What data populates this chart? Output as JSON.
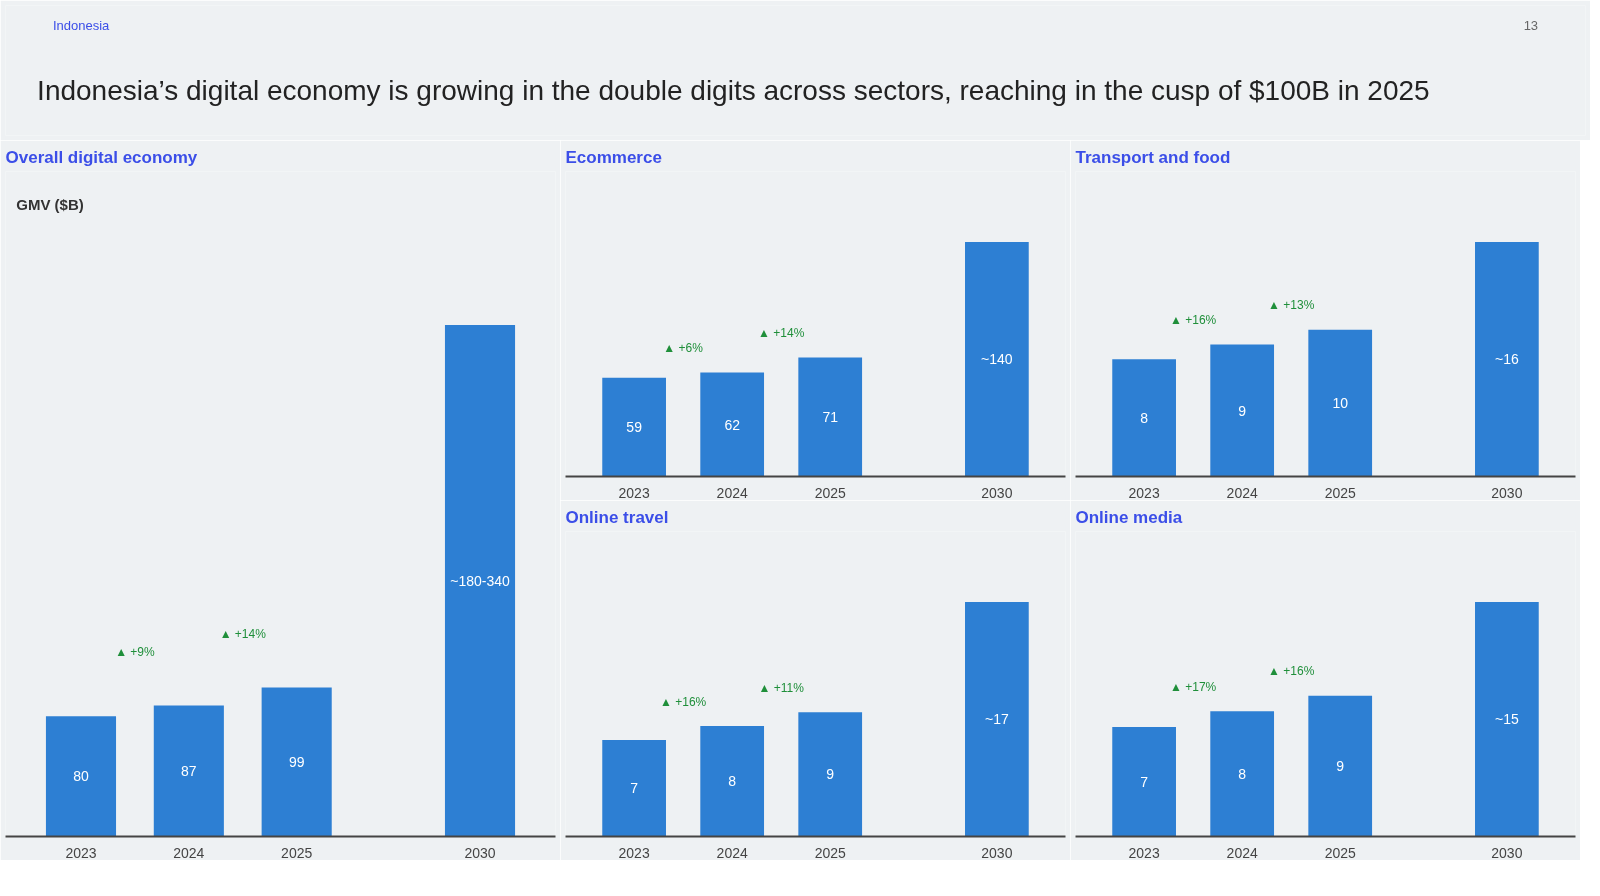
{
  "chart_data": [
    {
      "type": "other",
      "title": "Indonesia’s digital economy is growing in the double digits across sectors, reaching in the cusp of $100B in 2025",
      "annotations": [
        "Indonesia",
        "13"
      ]
    },
    {
      "type": "bar",
      "title": "Overall digital economy",
      "subtitle": "GMV ($B)",
      "categories": [
        "2023",
        "2024",
        "2025",
        "2030"
      ],
      "series": [
        {
          "color": "#2d7fd3",
          "values": [
            80,
            87,
            99,
            340
          ],
          "value_labels": [
            "80",
            "87",
            "99",
            "~180-340"
          ]
        }
      ],
      "annotations": [
        "▲ +9%",
        "▲ +14%"
      ]
    },
    {
      "type": "bar",
      "title": "Ecommerce",
      "categories": [
        "2023",
        "2024",
        "2025",
        "2030"
      ],
      "series": [
        {
          "color": "#2d7fd3",
          "values": [
            59,
            62,
            71,
            140
          ],
          "value_labels": [
            "59",
            "62",
            "71",
            "~140"
          ]
        }
      ],
      "annotations": [
        "▲ +6%",
        "▲ +14%"
      ]
    },
    {
      "type": "bar",
      "title": "Transport and food",
      "categories": [
        "2023",
        "2024",
        "2025",
        "2030"
      ],
      "series": [
        {
          "color": "#2d7fd3",
          "values": [
            8,
            9,
            10,
            16
          ],
          "value_labels": [
            "8",
            "9",
            "10",
            "~16"
          ]
        }
      ],
      "annotations": [
        "▲ +16%",
        "▲ +13%"
      ]
    },
    {
      "type": "bar",
      "title": "Online travel",
      "categories": [
        "2023",
        "2024",
        "2025",
        "2030"
      ],
      "series": [
        {
          "color": "#2d7fd3",
          "values": [
            7,
            8,
            9,
            17
          ],
          "value_labels": [
            "7",
            "8",
            "9",
            "~17"
          ]
        }
      ],
      "annotations": [
        "▲ +16%",
        "▲ +11%"
      ]
    },
    {
      "type": "bar",
      "title": "Online media",
      "categories": [
        "2023",
        "2024",
        "2025",
        "2030"
      ],
      "series": [
        {
          "color": "#2d7fd3",
          "values": [
            7,
            8,
            9,
            15
          ],
          "value_labels": [
            "7",
            "8",
            "9",
            "~15"
          ]
        }
      ],
      "annotations": [
        "▲ +17%",
        "▲ +16%"
      ]
    }
  ]
}
